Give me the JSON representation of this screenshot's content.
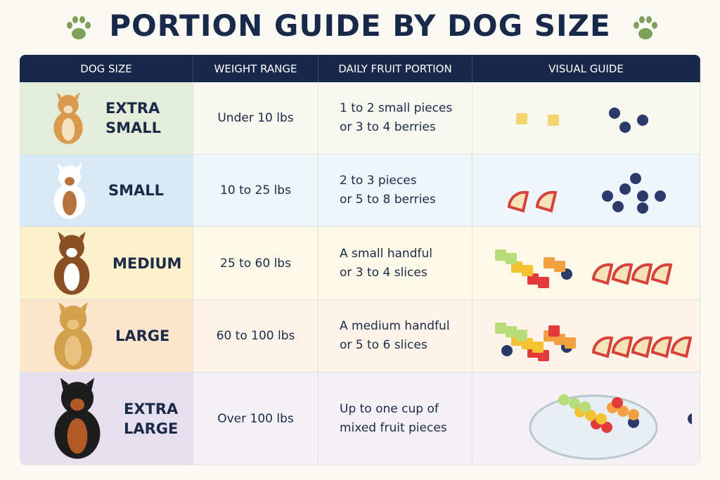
{
  "title": "PORTION GUIDE BY DOG SIZE",
  "table": {
    "headers": [
      "DOG SIZE",
      "WEIGHT RANGE",
      "DAILY FRUIT PORTION",
      "VISUAL GUIDE"
    ],
    "rows": [
      {
        "size": "EXTRA SMALL",
        "weight": "Under 10 lbs",
        "portion": [
          "1 to 2 small pieces",
          "or 3 to 4 berries"
        ]
      },
      {
        "size": "SMALL",
        "weight": "10 to 25 lbs",
        "portion": [
          "2 to 3 pieces",
          "or 5 to 8 berries"
        ]
      },
      {
        "size": "MEDIUM",
        "weight": "25 to 60 lbs",
        "portion": [
          "A small handful",
          "or 3 to 4 slices"
        ]
      },
      {
        "size": "LARGE",
        "weight": "60 to 100 lbs",
        "portion": [
          "A medium handful",
          "or 5 to 6 slices"
        ]
      },
      {
        "size": "EXTRA LARGE",
        "weight": "Over 100 lbs",
        "portion": [
          "Up to one cup of",
          "mixed fruit pieces"
        ]
      }
    ]
  }
}
